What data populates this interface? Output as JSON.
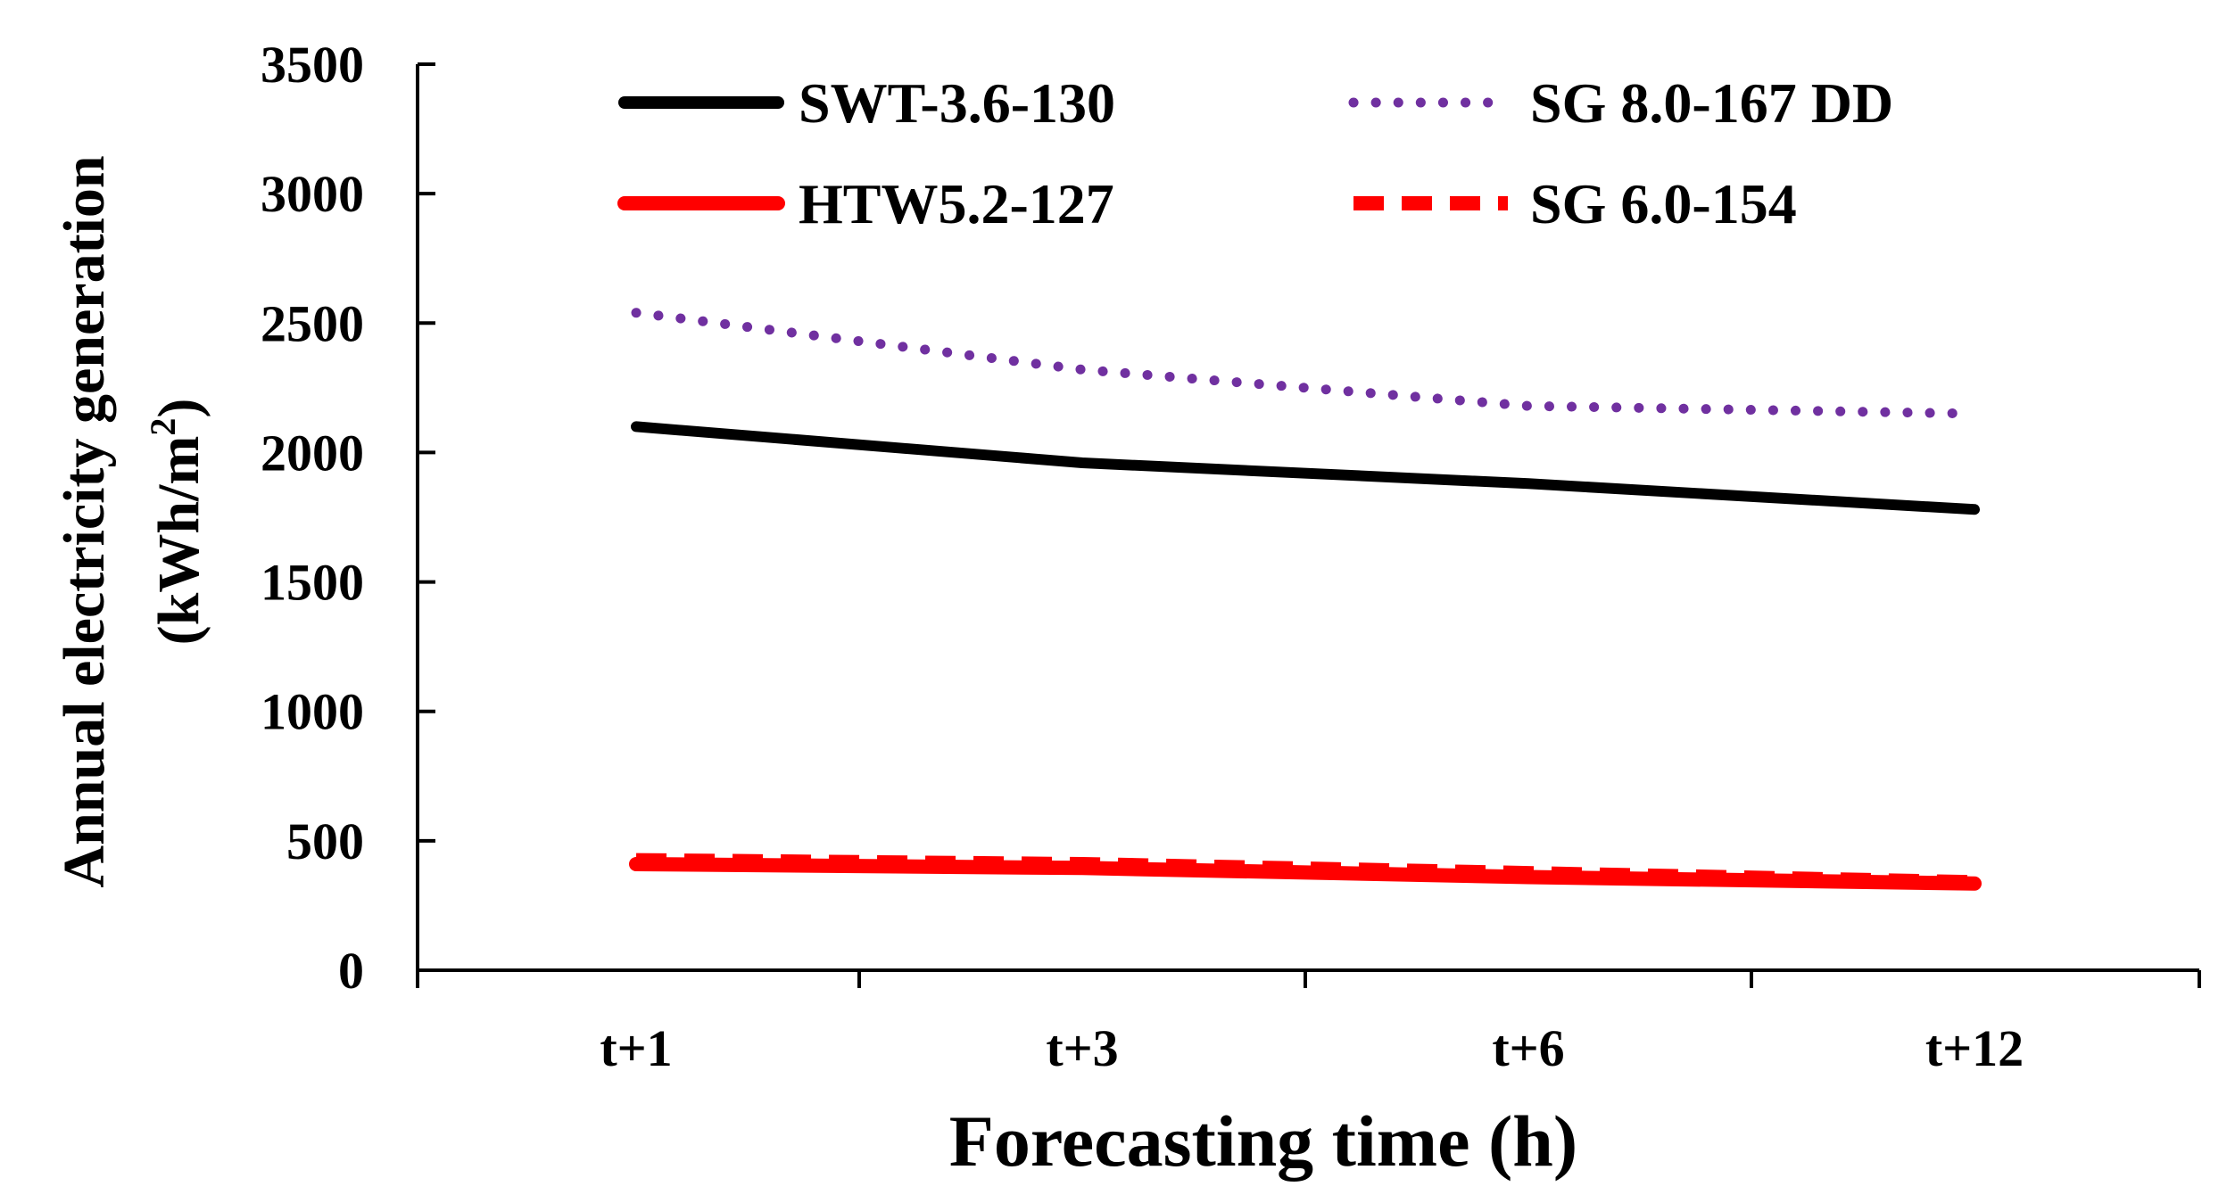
{
  "chart_data": {
    "type": "line",
    "title": "",
    "xlabel": "Forecasting time (h)",
    "ylabel_line1": "Annual electricity generation",
    "ylabel_line2_prefix": "(kWh/m",
    "ylabel_line2_superscript": "2",
    "ylabel_line2_suffix": ")",
    "categories": [
      "t+1",
      "t+3",
      "t+6",
      "t+12"
    ],
    "ylim": [
      0,
      3500
    ],
    "yticks": [
      "0",
      "500",
      "1000",
      "1500",
      "2000",
      "2500",
      "3000",
      "3500"
    ],
    "ytick_values": [
      0,
      500,
      1000,
      1500,
      2000,
      2500,
      3000,
      3500
    ],
    "legend_position": "top",
    "series": [
      {
        "name": "SWT-3.6-130",
        "values": [
          2100,
          1960,
          1880,
          1780
        ],
        "color": "#000000",
        "style": "solid"
      },
      {
        "name": "SG 8.0-167 DD",
        "values": [
          2540,
          2320,
          2180,
          2150
        ],
        "color": "#7030A0",
        "style": "dotted"
      },
      {
        "name": "HTW5.2-127",
        "values": [
          410,
          395,
          360,
          335
        ],
        "color": "#FF0000",
        "style": "solid"
      },
      {
        "name": "SG 6.0-154",
        "values": [
          425,
          410,
          375,
          340
        ],
        "color": "#FF0000",
        "style": "dashed"
      }
    ]
  }
}
